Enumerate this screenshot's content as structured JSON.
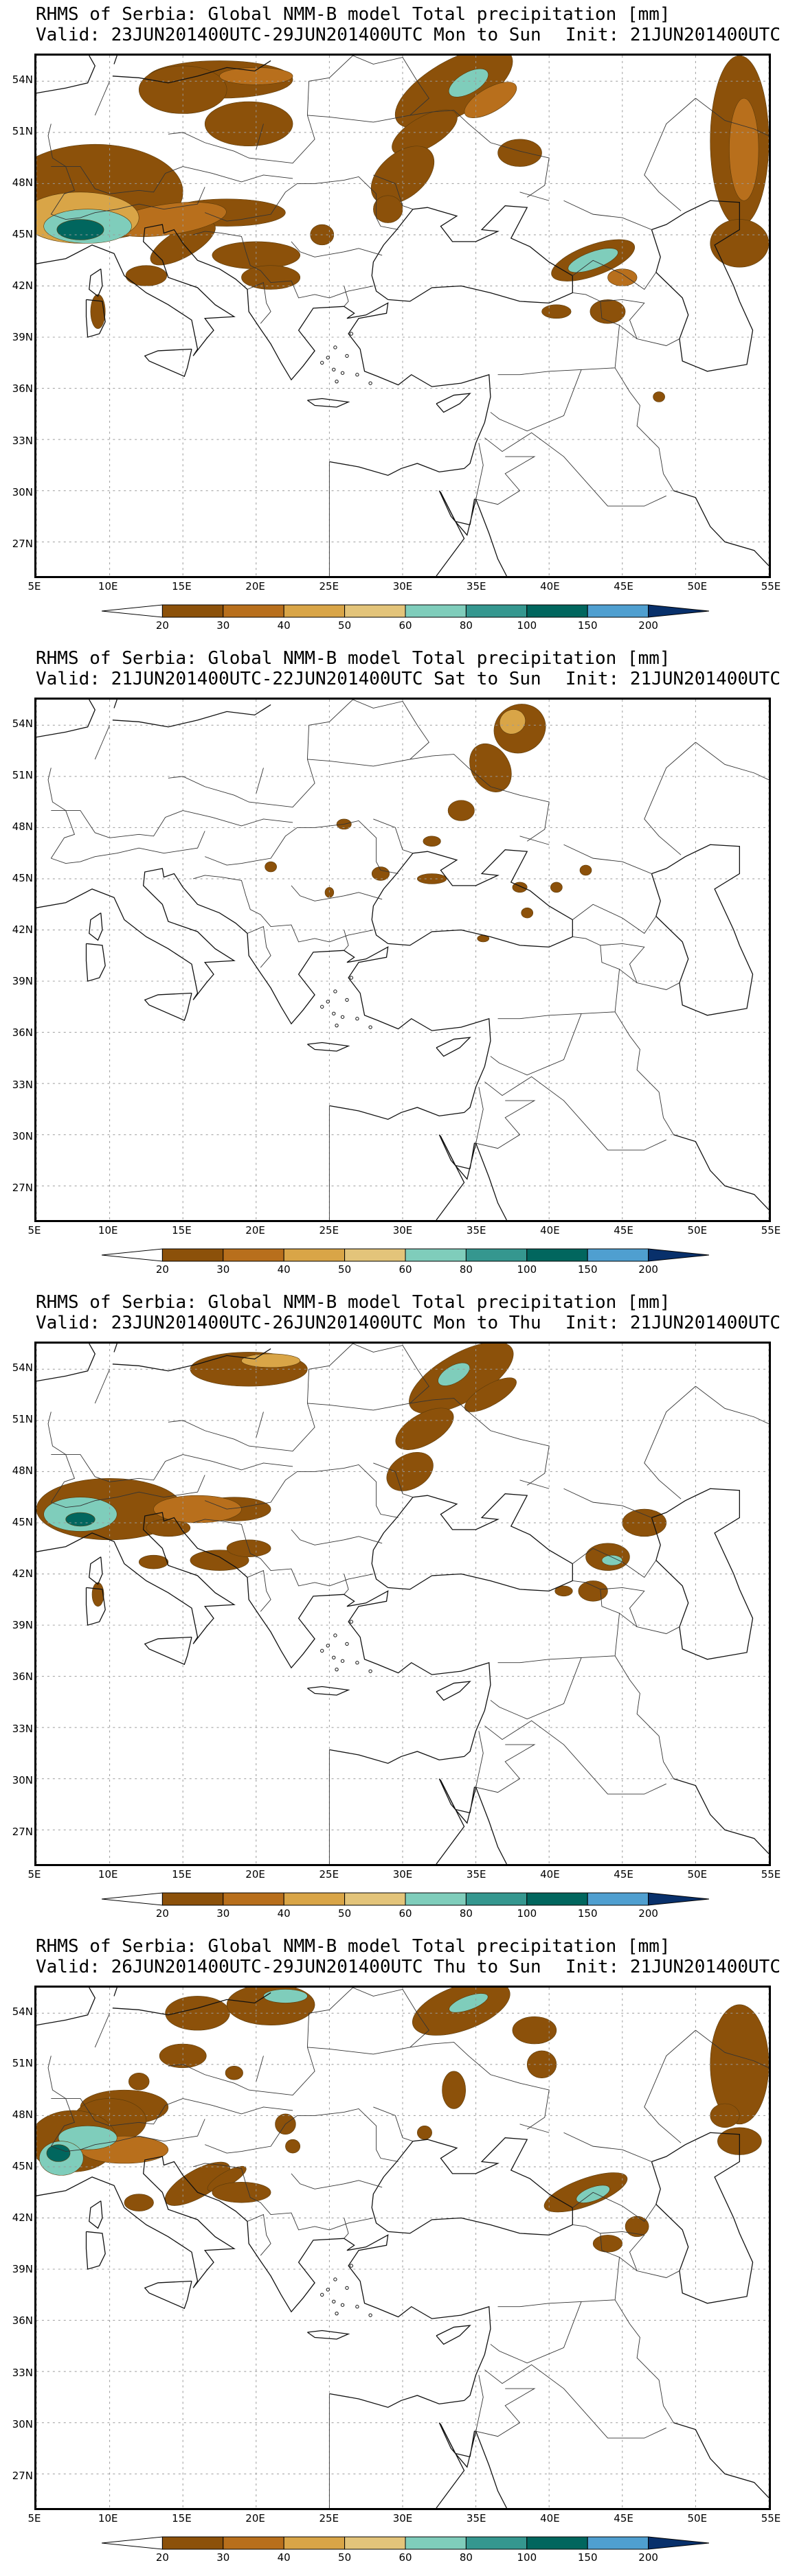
{
  "panels": [
    {
      "title": "RHMS of Serbia: Global NMM-B model Total precipitation [mm]",
      "valid": "Valid: 23JUN201400UTC-29JUN201400UTC Mon to Sun",
      "init": "Init: 21JUN201400UTC"
    },
    {
      "title": "RHMS of Serbia: Global NMM-B model Total precipitation [mm]",
      "valid": "Valid: 21JUN201400UTC-22JUN201400UTC Sat to Sun",
      "init": "Init: 21JUN201400UTC"
    },
    {
      "title": "RHMS of Serbia: Global NMM-B model Total precipitation [mm]",
      "valid": "Valid: 23JUN201400UTC-26JUN201400UTC Mon to Thu",
      "init": "Init: 21JUN201400UTC"
    },
    {
      "title": "RHMS of Serbia: Global NMM-B model Total precipitation [mm]",
      "valid": "Valid: 26JUN201400UTC-29JUN201400UTC Thu to Sun",
      "init": "Init: 21JUN201400UTC"
    }
  ],
  "lat_labels": [
    "54N",
    "51N",
    "48N",
    "45N",
    "42N",
    "39N",
    "36N",
    "33N",
    "30N",
    "27N"
  ],
  "lon_labels": [
    "5E",
    "10E",
    "15E",
    "20E",
    "25E",
    "30E",
    "35E",
    "40E",
    "45E",
    "50E",
    "55E"
  ],
  "colorbar": {
    "labels": [
      "20",
      "30",
      "40",
      "50",
      "60",
      "80",
      "100",
      "150",
      "200"
    ],
    "colors": [
      "#8c510a",
      "#b86f1c",
      "#d9a547",
      "#e3c47a",
      "#7fcdbb",
      "#35978f",
      "#01665e",
      "#4f9fd0",
      "#2166ac",
      "#08306b"
    ]
  }
}
